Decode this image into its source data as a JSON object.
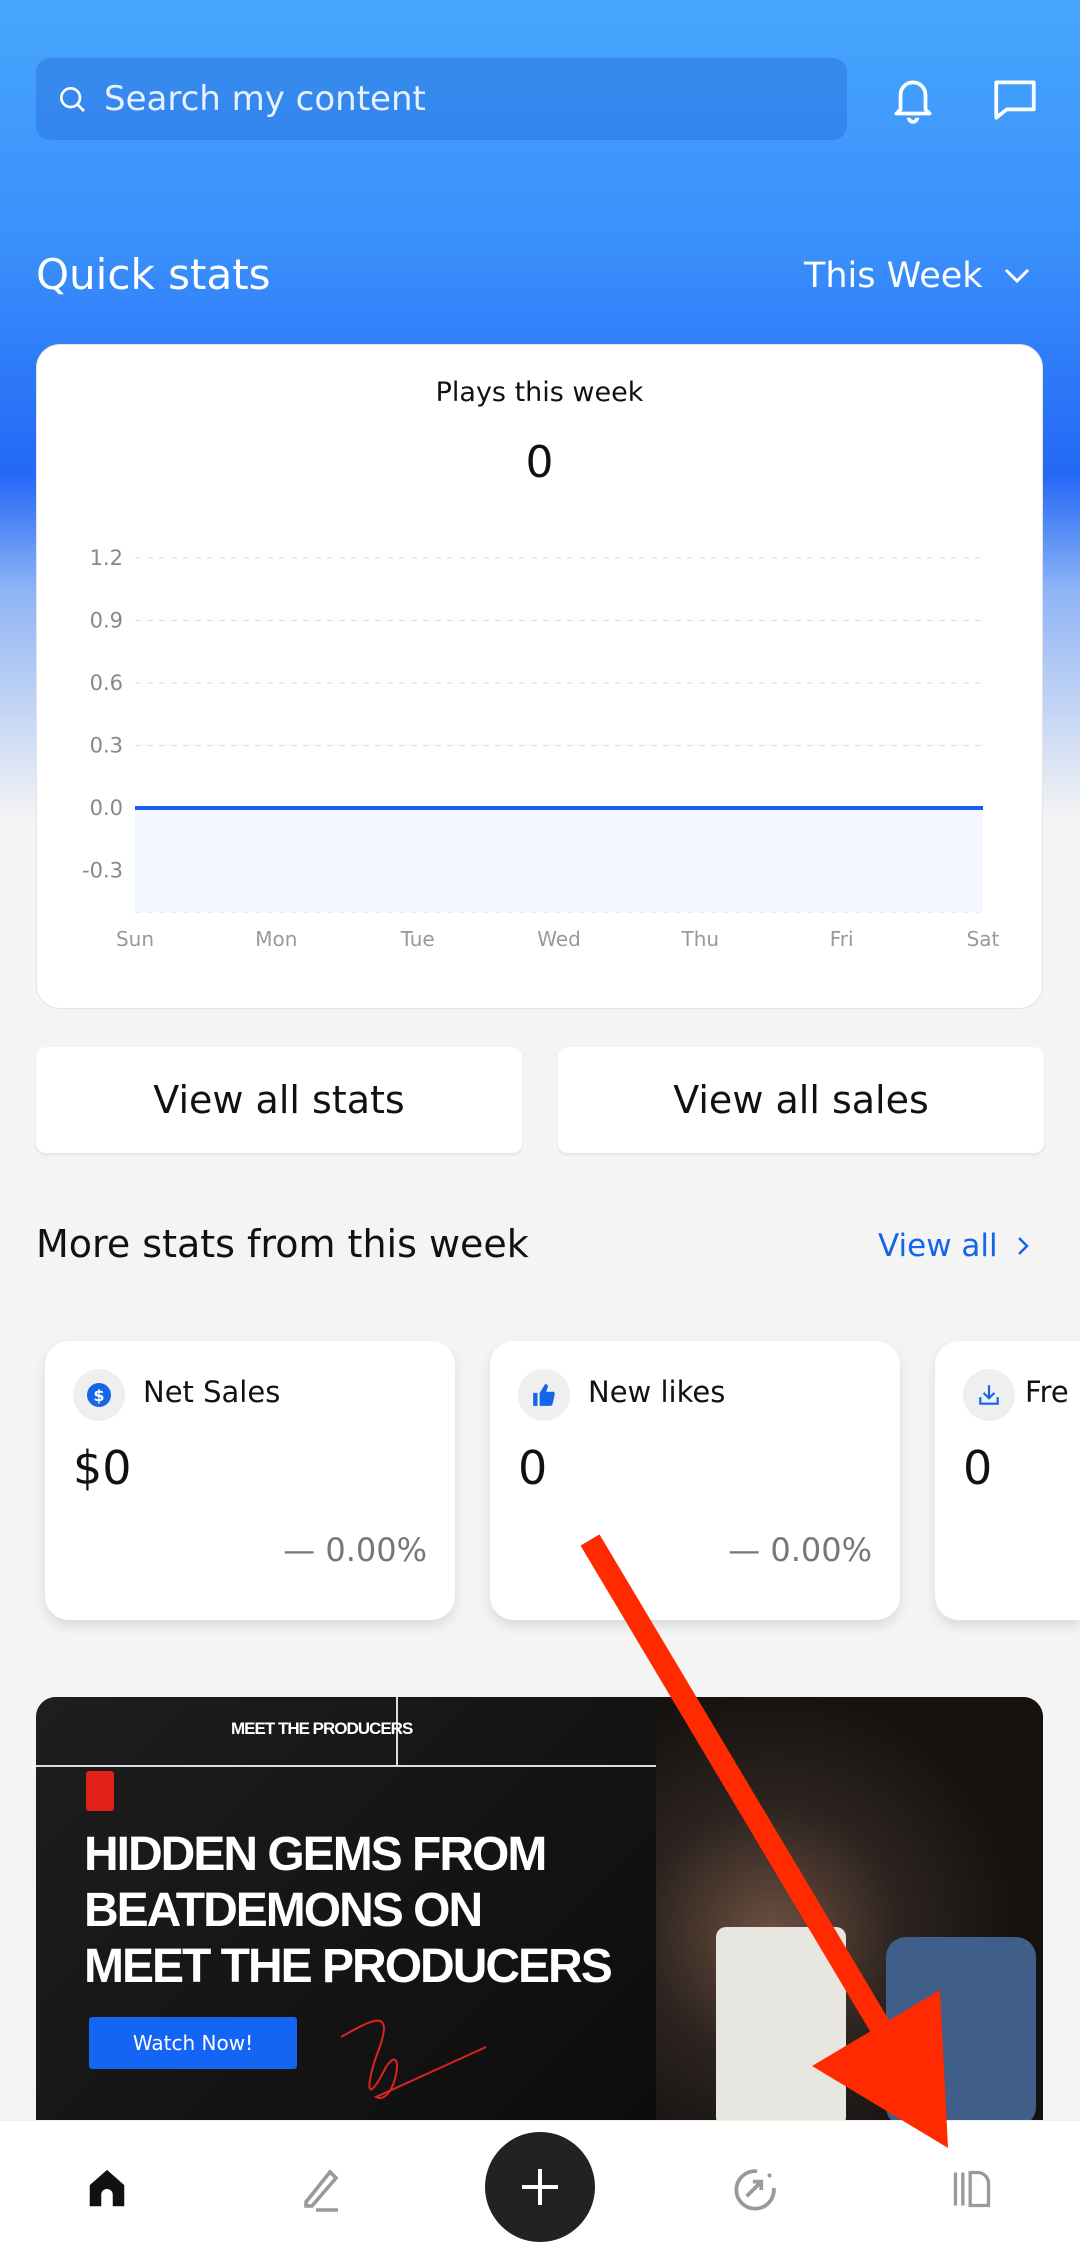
{
  "header": {
    "search_placeholder": "Search my content",
    "icons": [
      "search-icon",
      "bell-icon",
      "chat-icon"
    ]
  },
  "quick_stats": {
    "title": "Quick stats",
    "period": "This Week"
  },
  "plays": {
    "title": "Plays this week",
    "value": "0"
  },
  "chart_data": {
    "type": "area",
    "categories": [
      "Sun",
      "Mon",
      "Tue",
      "Wed",
      "Thu",
      "Fri",
      "Sat"
    ],
    "values": [
      0,
      0,
      0,
      0,
      0,
      0,
      0
    ],
    "yticks": [
      "1.2",
      "0.9",
      "0.6",
      "0.3",
      "0.0",
      "-0.3"
    ],
    "ylim": [
      -0.3,
      1.2
    ],
    "grid": true,
    "color": "#1a5ff0"
  },
  "buttons": {
    "stats": "View all stats",
    "sales": "View all sales"
  },
  "more": {
    "title": "More stats from this week",
    "view_all": "View all"
  },
  "stat_cards": [
    {
      "label": "Net Sales",
      "value": "$0",
      "change": "0.00%",
      "icon": "dollar-icon"
    },
    {
      "label": "New likes",
      "value": "0",
      "change": "0.00%",
      "icon": "thumbs-up-icon"
    },
    {
      "label": "Fre",
      "value": "0",
      "change": "",
      "icon": "download-icon"
    }
  ],
  "banner": {
    "tag": "MEET THE PRODUCERS",
    "headline": [
      "HIDDEN GEMS FROM",
      "BEATDEMONS ON",
      "MEET THE PRODUCERS"
    ],
    "cta": "Watch Now!"
  },
  "nav": [
    "home-icon",
    "edit-icon",
    "plus-icon",
    "growth-icon",
    "library-icon"
  ],
  "colors": {
    "accent": "#1565e8",
    "annotation": "#ff2a00"
  }
}
